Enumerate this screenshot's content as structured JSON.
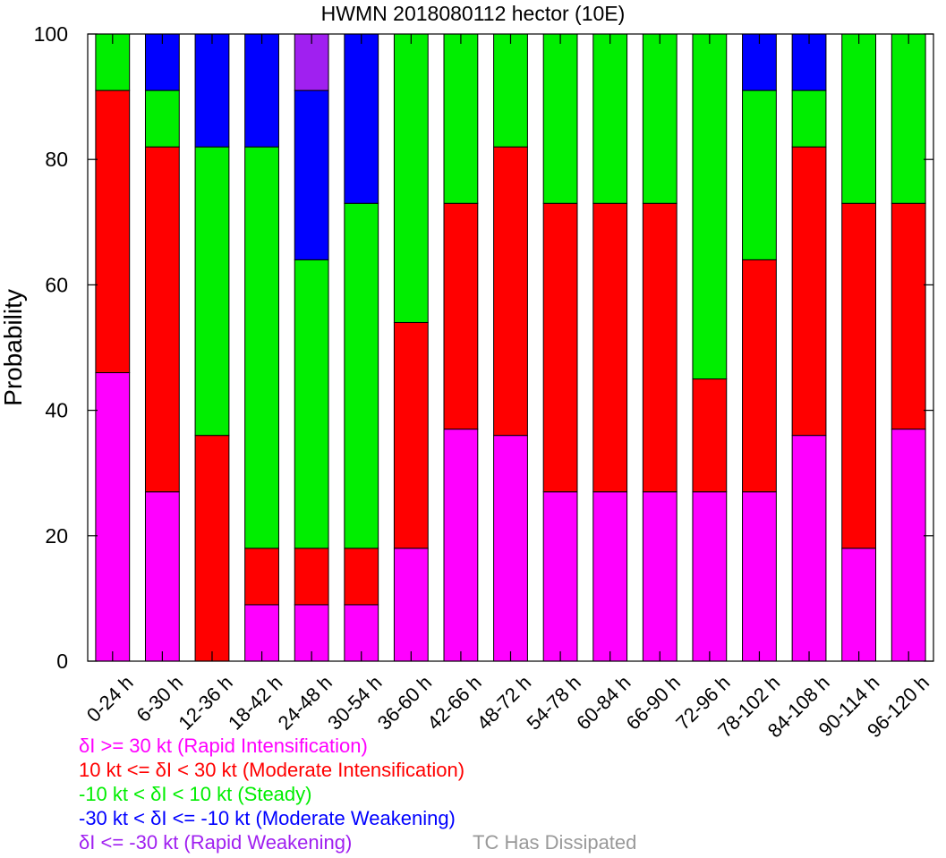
{
  "chart_data": {
    "type": "bar",
    "stacked": true,
    "title": "HWMN 2018080112 hector (10E)",
    "ylabel": "Probability",
    "xlabel": "",
    "ylim": [
      0,
      100
    ],
    "yticks": [
      0,
      20,
      40,
      60,
      80,
      100
    ],
    "grid": false,
    "categories": [
      "0-24 h",
      "6-30 h",
      "12-36 h",
      "18-42 h",
      "24-48 h",
      "30-54 h",
      "36-60 h",
      "42-66 h",
      "48-72 h",
      "54-78 h",
      "60-84 h",
      "66-90 h",
      "72-96 h",
      "78-102 h",
      "84-108 h",
      "90-114 h",
      "96-120 h"
    ],
    "series": [
      {
        "name": "δI >= 30 kt (Rapid Intensification)",
        "color": "#ff00ff",
        "values": [
          46,
          27,
          0,
          9,
          9,
          9,
          18,
          37,
          36,
          27,
          27,
          27,
          27,
          27,
          36,
          18,
          37
        ]
      },
      {
        "name": "10 kt <= δI < 30 kt (Moderate Intensification)",
        "color": "#ff0000",
        "values": [
          45,
          55,
          36,
          9,
          9,
          9,
          36,
          36,
          46,
          46,
          46,
          46,
          18,
          37,
          46,
          55,
          36
        ]
      },
      {
        "name": "-10 kt < δI < 10 kt (Steady)",
        "color": "#00ee00",
        "values": [
          9,
          9,
          46,
          64,
          46,
          55,
          46,
          27,
          18,
          27,
          27,
          27,
          55,
          27,
          9,
          27,
          27
        ]
      },
      {
        "name": "-30 kt < δI <= -10 kt (Moderate Weakening)",
        "color": "#0000ff",
        "values": [
          0,
          9,
          18,
          18,
          27,
          27,
          0,
          0,
          0,
          0,
          0,
          0,
          0,
          9,
          9,
          0,
          0
        ]
      },
      {
        "name": "δI <= -30 kt (Rapid Weakening)",
        "color": "#a020f0",
        "values": [
          0,
          0,
          0,
          0,
          9,
          0,
          0,
          0,
          0,
          0,
          0,
          0,
          0,
          0,
          0,
          0,
          0
        ]
      }
    ],
    "legend_position": "bottom-left",
    "dissipated_note": {
      "text": "TC Has Dissipated",
      "color": "#999999"
    }
  }
}
